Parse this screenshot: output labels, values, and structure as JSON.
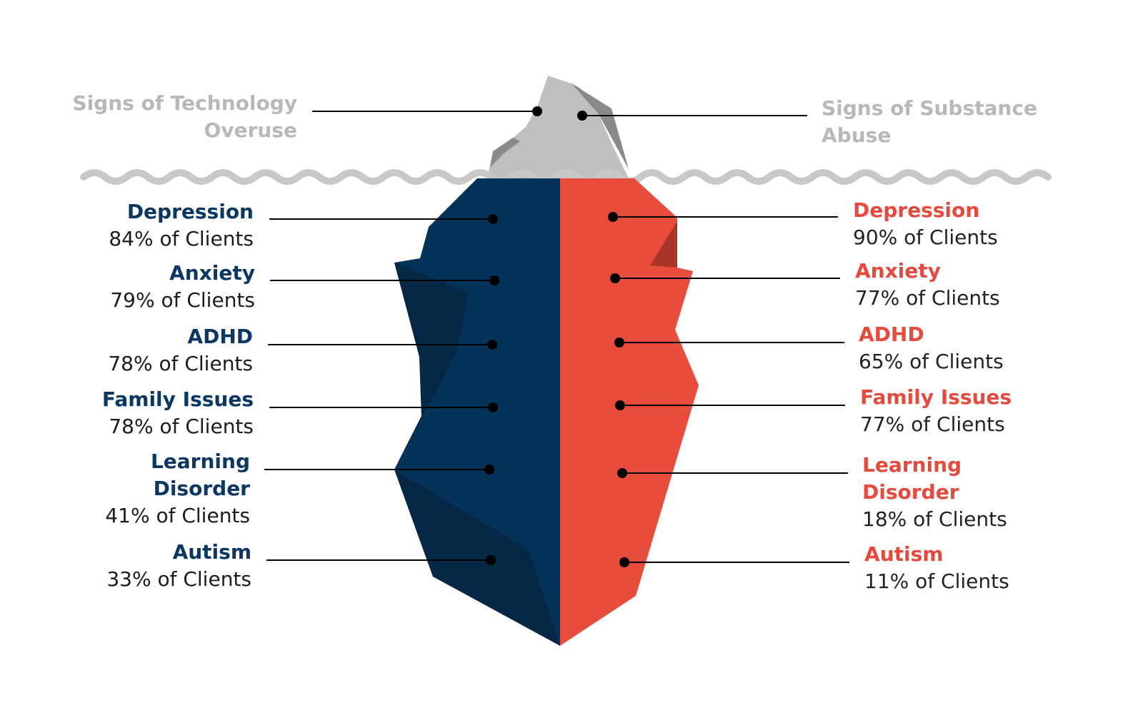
{
  "top_labels": {
    "left": [
      "Signs of Technology",
      "Overuse"
    ],
    "right": [
      "Signs of Substance",
      "Abuse"
    ]
  },
  "left_items": [
    {
      "title": [
        "Depression"
      ],
      "pct": "84% of Clients"
    },
    {
      "title": [
        "Anxiety"
      ],
      "pct": "79% of Clients"
    },
    {
      "title": [
        "ADHD"
      ],
      "pct": "78% of Clients"
    },
    {
      "title": [
        "Family Issues"
      ],
      "pct": "78% of Clients"
    },
    {
      "title": [
        "Learning",
        "Disorder"
      ],
      "pct": "41% of Clients"
    },
    {
      "title": [
        "Autism"
      ],
      "pct": "33% of Clients"
    }
  ],
  "right_items": [
    {
      "title": [
        "Depression"
      ],
      "pct": "90% of Clients"
    },
    {
      "title": [
        "Anxiety"
      ],
      "pct": "77% of Clients"
    },
    {
      "title": [
        "ADHD"
      ],
      "pct": "65% of Clients"
    },
    {
      "title": [
        "Family Issues"
      ],
      "pct": "77% of Clients"
    },
    {
      "title": [
        "Learning",
        "Disorder"
      ],
      "pct": "18% of Clients"
    },
    {
      "title": [
        "Autism"
      ],
      "pct": "11% of Clients"
    }
  ],
  "colors": {
    "navy": "#04335a",
    "navy_shadow": "#062746",
    "red": "#e84c3d",
    "red_shadow": "#a9352a",
    "tip": "#bfbfbf",
    "tip_shadow": "#8a8a8a",
    "water": "#c8c8c8",
    "left_title": "#0c3763",
    "right_title": "#e64a3c",
    "top_label": "#b8b8b8"
  }
}
